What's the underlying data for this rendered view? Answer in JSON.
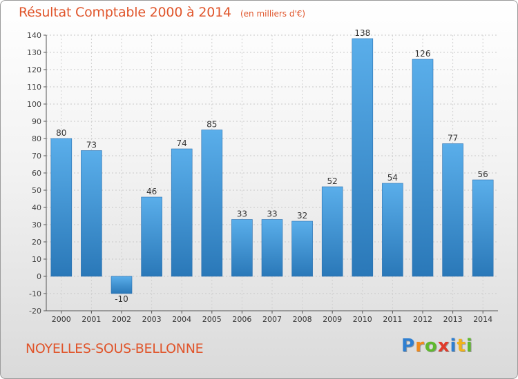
{
  "chart_data": {
    "type": "bar",
    "title": "Résultat Comptable 2000 à 2014",
    "subtitle": "(en milliers d'€)",
    "categories": [
      "2000",
      "2001",
      "2002",
      "2003",
      "2004",
      "2005",
      "2006",
      "2007",
      "2008",
      "2009",
      "2010",
      "2011",
      "2012",
      "2013",
      "2014"
    ],
    "values": [
      80,
      73,
      -10,
      46,
      74,
      85,
      33,
      33,
      32,
      52,
      138,
      54,
      126,
      77,
      56
    ],
    "ylim": [
      -20,
      140
    ],
    "yticks": [
      -20,
      -10,
      0,
      10,
      20,
      30,
      40,
      50,
      60,
      70,
      80,
      90,
      100,
      110,
      120,
      130,
      140
    ],
    "grid": true,
    "bar_color_light": "#5aaeea",
    "bar_color_dark": "#2a78b8"
  },
  "commune": "NOYELLES-SOUS-BELLONNE",
  "logo": {
    "letters": [
      "P",
      "r",
      "o",
      "x",
      "i",
      "t",
      "i"
    ],
    "colors": [
      "#2f7fd0",
      "#f08a1c",
      "#5fb82e",
      "#e03a2a",
      "#2f7fd0",
      "#f0b21c",
      "#5fb82e"
    ]
  }
}
